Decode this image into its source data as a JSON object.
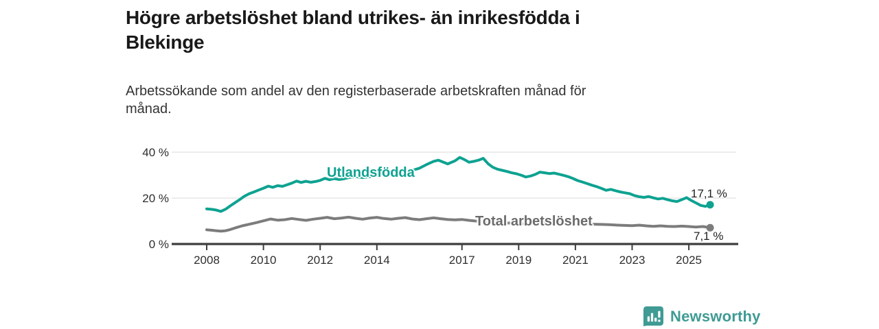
{
  "header": {
    "title_line1": "Högre arbetslöshet bland utrikes- än inrikesfödda i",
    "title_line2": "Blekinge",
    "subtitle_line1": "Arbetssökande som andel av den registerbaserade arbetskraften månad för",
    "subtitle_line2": "månad."
  },
  "chart_data": {
    "type": "line",
    "title": "Högre arbetslöshet bland utrikes- än inrikesfödda i Blekinge",
    "subtitle": "Arbetssökande som andel av den registerbaserade arbetskraften månad för månad.",
    "unit": "%",
    "xlabel": "",
    "ylabel": "",
    "ylim": [
      0,
      44
    ],
    "xlim": [
      2007.6,
      2026.5
    ],
    "grid": "horizontal",
    "legend_position": "inline-labels",
    "x_ticks": [
      2008,
      2010,
      2012,
      2014,
      2017,
      2019,
      2021,
      2023,
      2025
    ],
    "y_ticks": [
      {
        "value": 0,
        "label": "0 %"
      },
      {
        "value": 20,
        "label": "20 %"
      },
      {
        "value": 40,
        "label": "40 %"
      }
    ],
    "series": [
      {
        "name": "Utlandsfödda",
        "color": "#0ea291",
        "label_color": "#0ea291",
        "end_label": "17,1 %",
        "end_value": 17.1,
        "points": [
          [
            2008.0,
            15.3
          ],
          [
            2008.17,
            15.1
          ],
          [
            2008.33,
            14.8
          ],
          [
            2008.5,
            14.2
          ],
          [
            2008.67,
            15.2
          ],
          [
            2008.83,
            16.6
          ],
          [
            2009.0,
            18.0
          ],
          [
            2009.17,
            19.4
          ],
          [
            2009.33,
            20.8
          ],
          [
            2009.5,
            21.9
          ],
          [
            2009.67,
            22.7
          ],
          [
            2009.83,
            23.5
          ],
          [
            2010.0,
            24.3
          ],
          [
            2010.17,
            25.2
          ],
          [
            2010.33,
            24.7
          ],
          [
            2010.5,
            25.4
          ],
          [
            2010.67,
            25.1
          ],
          [
            2010.83,
            25.8
          ],
          [
            2011.0,
            26.5
          ],
          [
            2011.17,
            27.4
          ],
          [
            2011.33,
            26.8
          ],
          [
            2011.5,
            27.3
          ],
          [
            2011.67,
            26.9
          ],
          [
            2011.83,
            27.2
          ],
          [
            2012.0,
            27.7
          ],
          [
            2012.17,
            28.6
          ],
          [
            2012.33,
            28.0
          ],
          [
            2012.5,
            28.5
          ],
          [
            2012.67,
            28.1
          ],
          [
            2012.83,
            28.4
          ],
          [
            2013.0,
            28.9
          ],
          [
            2013.25,
            29.4
          ],
          [
            2013.5,
            28.9
          ],
          [
            2013.75,
            29.3
          ],
          [
            2014.0,
            29.9
          ],
          [
            2014.25,
            30.5
          ],
          [
            2014.5,
            30.1
          ],
          [
            2014.75,
            30.7
          ],
          [
            2015.0,
            31.3
          ],
          [
            2015.25,
            32.1
          ],
          [
            2015.5,
            33.0
          ],
          [
            2015.75,
            34.6
          ],
          [
            2016.0,
            36.0
          ],
          [
            2016.17,
            36.5
          ],
          [
            2016.33,
            35.7
          ],
          [
            2016.5,
            34.9
          ],
          [
            2016.75,
            36.2
          ],
          [
            2016.92,
            37.7
          ],
          [
            2017.08,
            36.8
          ],
          [
            2017.25,
            35.6
          ],
          [
            2017.42,
            36.0
          ],
          [
            2017.58,
            36.5
          ],
          [
            2017.75,
            37.3
          ],
          [
            2017.92,
            35.0
          ],
          [
            2018.08,
            33.5
          ],
          [
            2018.25,
            32.6
          ],
          [
            2018.42,
            32.1
          ],
          [
            2018.58,
            31.6
          ],
          [
            2018.75,
            31.0
          ],
          [
            2018.92,
            30.6
          ],
          [
            2019.08,
            30.0
          ],
          [
            2019.25,
            29.2
          ],
          [
            2019.42,
            29.6
          ],
          [
            2019.58,
            30.3
          ],
          [
            2019.75,
            31.3
          ],
          [
            2019.92,
            31.0
          ],
          [
            2020.08,
            30.7
          ],
          [
            2020.25,
            30.9
          ],
          [
            2020.42,
            30.4
          ],
          [
            2020.58,
            29.9
          ],
          [
            2020.75,
            29.3
          ],
          [
            2020.92,
            28.5
          ],
          [
            2021.08,
            27.6
          ],
          [
            2021.25,
            27.0
          ],
          [
            2021.42,
            26.3
          ],
          [
            2021.58,
            25.6
          ],
          [
            2021.75,
            25.0
          ],
          [
            2021.92,
            24.2
          ],
          [
            2022.08,
            23.4
          ],
          [
            2022.25,
            23.8
          ],
          [
            2022.42,
            23.2
          ],
          [
            2022.58,
            22.7
          ],
          [
            2022.75,
            22.3
          ],
          [
            2022.92,
            21.9
          ],
          [
            2023.08,
            21.1
          ],
          [
            2023.25,
            20.6
          ],
          [
            2023.42,
            20.3
          ],
          [
            2023.58,
            20.7
          ],
          [
            2023.75,
            20.1
          ],
          [
            2023.92,
            19.6
          ],
          [
            2024.08,
            19.9
          ],
          [
            2024.25,
            19.3
          ],
          [
            2024.42,
            18.8
          ],
          [
            2024.58,
            18.5
          ],
          [
            2024.75,
            19.3
          ],
          [
            2024.92,
            20.2
          ],
          [
            2025.08,
            19.0
          ],
          [
            2025.25,
            17.9
          ],
          [
            2025.42,
            16.8
          ],
          [
            2025.58,
            16.4
          ],
          [
            2025.75,
            17.1
          ]
        ]
      },
      {
        "name": "Total arbetslöshet",
        "color": "#7c7c7c",
        "label_color": "#6b6b6b",
        "end_label": "7,1 %",
        "end_value": 7.1,
        "points": [
          [
            2008.0,
            6.2
          ],
          [
            2008.17,
            6.0
          ],
          [
            2008.33,
            5.8
          ],
          [
            2008.5,
            5.6
          ],
          [
            2008.67,
            5.8
          ],
          [
            2008.83,
            6.3
          ],
          [
            2009.0,
            7.0
          ],
          [
            2009.25,
            7.9
          ],
          [
            2009.5,
            8.6
          ],
          [
            2009.75,
            9.3
          ],
          [
            2010.0,
            10.1
          ],
          [
            2010.25,
            10.9
          ],
          [
            2010.5,
            10.4
          ],
          [
            2010.75,
            10.6
          ],
          [
            2011.0,
            11.1
          ],
          [
            2011.25,
            10.7
          ],
          [
            2011.5,
            10.3
          ],
          [
            2011.75,
            10.8
          ],
          [
            2012.0,
            11.2
          ],
          [
            2012.25,
            11.6
          ],
          [
            2012.5,
            11.0
          ],
          [
            2012.75,
            11.3
          ],
          [
            2013.0,
            11.7
          ],
          [
            2013.25,
            11.2
          ],
          [
            2013.5,
            10.8
          ],
          [
            2013.75,
            11.3
          ],
          [
            2014.0,
            11.6
          ],
          [
            2014.25,
            11.1
          ],
          [
            2014.5,
            10.8
          ],
          [
            2014.75,
            11.2
          ],
          [
            2015.0,
            11.5
          ],
          [
            2015.25,
            10.9
          ],
          [
            2015.5,
            10.6
          ],
          [
            2015.75,
            11.0
          ],
          [
            2016.0,
            11.4
          ],
          [
            2016.25,
            11.0
          ],
          [
            2016.5,
            10.7
          ],
          [
            2016.75,
            10.5
          ],
          [
            2017.0,
            10.7
          ],
          [
            2017.25,
            10.3
          ],
          [
            2017.5,
            10.0
          ],
          [
            2017.75,
            9.8
          ],
          [
            2018.0,
            9.6
          ],
          [
            2018.25,
            9.4
          ],
          [
            2018.5,
            9.2
          ],
          [
            2018.75,
            9.1
          ],
          [
            2019.0,
            8.9
          ],
          [
            2019.25,
            8.8
          ],
          [
            2019.5,
            8.9
          ],
          [
            2019.75,
            9.1
          ],
          [
            2020.0,
            9.3
          ],
          [
            2020.25,
            9.5
          ],
          [
            2020.5,
            9.4
          ],
          [
            2020.75,
            9.2
          ],
          [
            2021.0,
            9.0
          ],
          [
            2021.25,
            8.8
          ],
          [
            2021.5,
            8.7
          ],
          [
            2021.75,
            8.6
          ],
          [
            2022.0,
            8.5
          ],
          [
            2022.25,
            8.4
          ],
          [
            2022.5,
            8.2
          ],
          [
            2022.75,
            8.1
          ],
          [
            2023.0,
            8.0
          ],
          [
            2023.25,
            8.2
          ],
          [
            2023.5,
            7.9
          ],
          [
            2023.75,
            7.7
          ],
          [
            2024.0,
            7.9
          ],
          [
            2024.25,
            7.7
          ],
          [
            2024.5,
            7.6
          ],
          [
            2024.75,
            7.8
          ],
          [
            2025.0,
            7.6
          ],
          [
            2025.25,
            7.4
          ],
          [
            2025.5,
            7.6
          ],
          [
            2025.75,
            7.1
          ]
        ]
      }
    ]
  },
  "footer": {
    "brand": "Newsworthy",
    "brand_color": "#3f9b94"
  }
}
